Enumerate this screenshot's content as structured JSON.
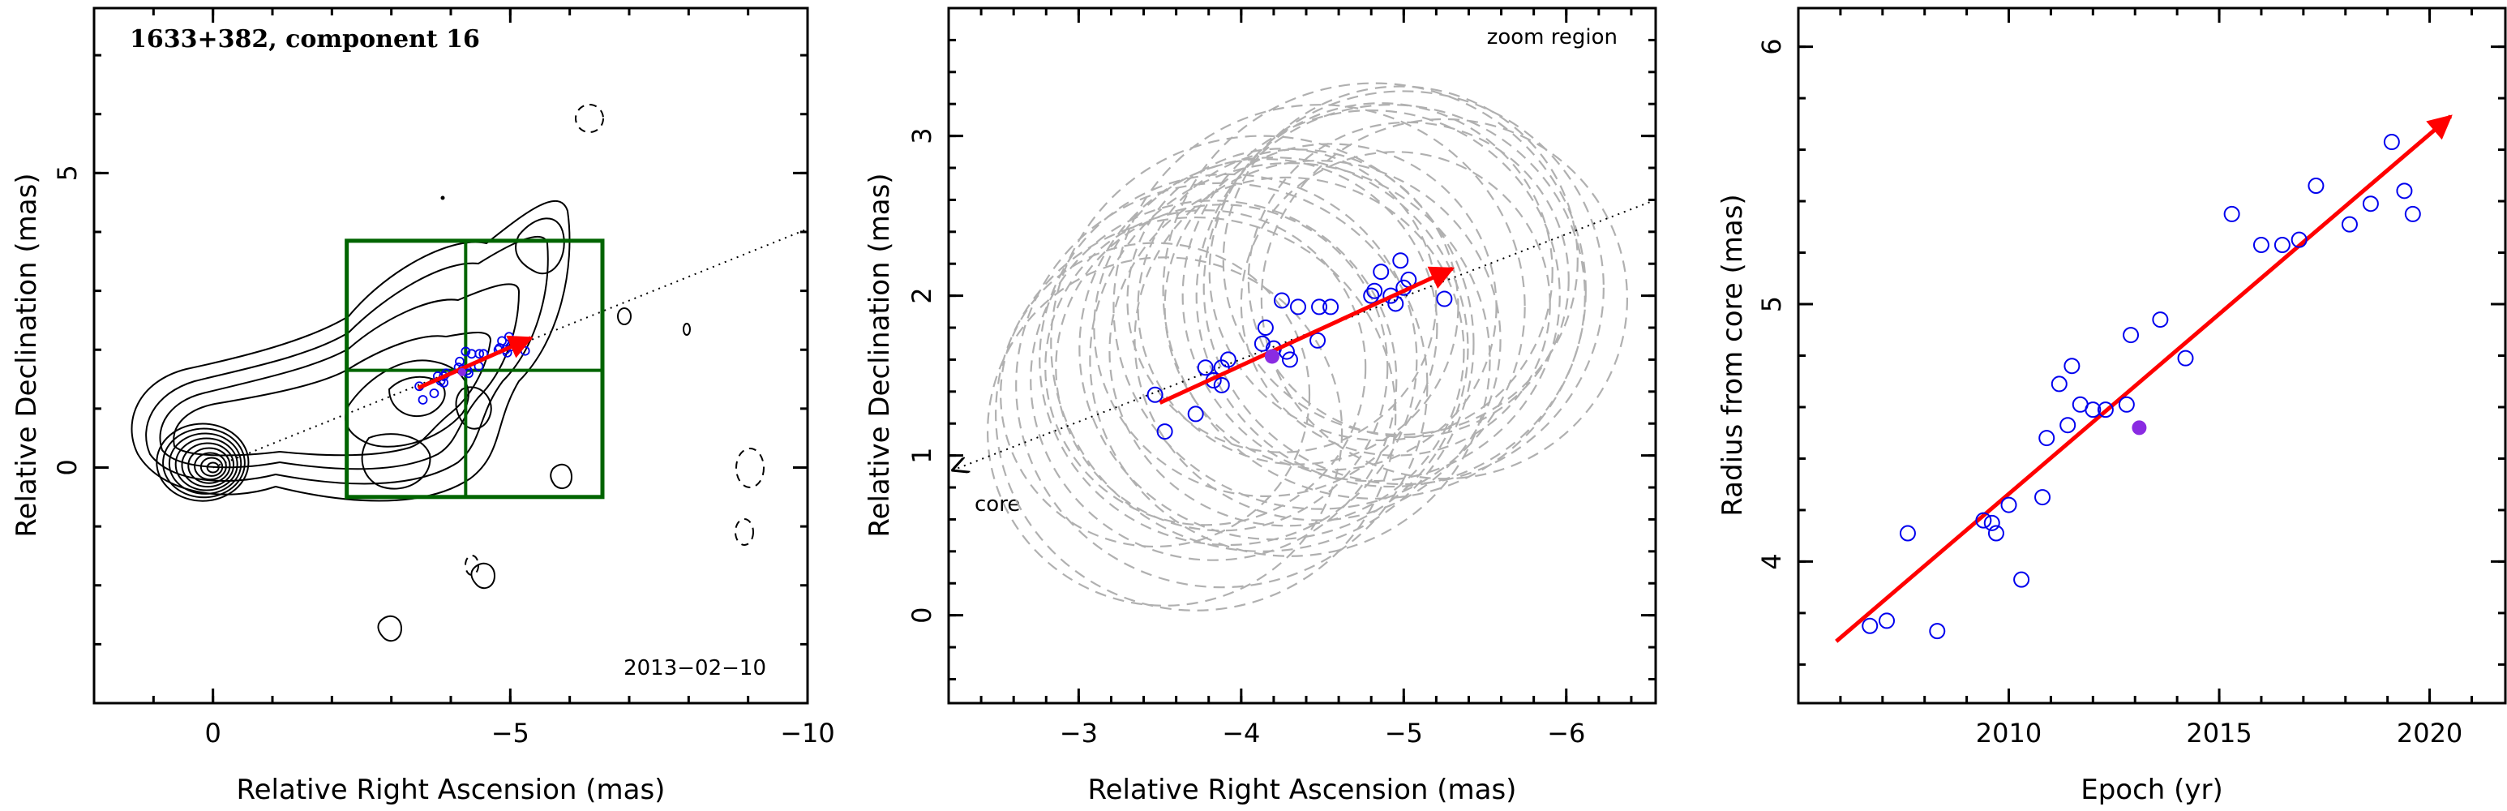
{
  "chart_data": [
    {
      "type": "contour",
      "title": "1633+382, component 16",
      "xlabel": "Relative Right Ascension (mas)",
      "ylabel": "Relative Declination (mas)",
      "xlim": [
        2.0,
        -10.0
      ],
      "ylim": [
        -4.0,
        7.8
      ],
      "xticks_major": [
        0,
        -5,
        -10
      ],
      "yticks_major": [
        0,
        5
      ],
      "epoch_label": "2013−02−10",
      "jet_axis": [
        [
          0,
          0
        ],
        [
          -10,
          4.05
        ]
      ],
      "zoom_box": {
        "x": [
          -2.25,
          -6.55
        ],
        "y": [
          -0.5,
          3.85
        ],
        "divider_x": -4.25,
        "divider_y": 1.65
      },
      "arrow": {
        "from": [
          -3.45,
          1.35
        ],
        "to": [
          -5.35,
          2.2
        ],
        "color": "#ff0000"
      },
      "core_center": [
        0,
        0
      ]
    },
    {
      "type": "scatter",
      "xlabel": "Relative Right Ascension (mas)",
      "ylabel": "Relative Declination (mas)",
      "xlim": [
        -2.2,
        -6.55
      ],
      "ylim": [
        -0.55,
        3.8
      ],
      "xticks_major": [
        -3,
        -4,
        -5,
        -6
      ],
      "yticks_major": [
        0,
        1,
        2,
        3
      ],
      "annotation_zoom": "zoom region",
      "annotation_core": "core",
      "core_arrow_tip": [
        -2.2,
        0.9
      ],
      "jet_axis": [
        [
          -2.2,
          0.9
        ],
        [
          -6.55,
          2.6
        ]
      ],
      "arrow": {
        "from": [
          -3.5,
          1.33
        ],
        "to": [
          -5.3,
          2.17
        ],
        "color": "#ff0000"
      },
      "points": [
        [
          -3.47,
          1.38
        ],
        [
          -3.53,
          1.15
        ],
        [
          -3.72,
          1.26
        ],
        [
          -3.78,
          1.55
        ],
        [
          -3.83,
          1.47
        ],
        [
          -3.88,
          1.44
        ],
        [
          -3.88,
          1.55
        ],
        [
          -3.92,
          1.6
        ],
        [
          -4.13,
          1.7
        ],
        [
          -4.15,
          1.8
        ],
        [
          -4.2,
          1.67
        ],
        [
          -4.25,
          1.97
        ],
        [
          -4.28,
          1.65
        ],
        [
          -4.3,
          1.6
        ],
        [
          -4.35,
          1.93
        ],
        [
          -4.47,
          1.72
        ],
        [
          -4.48,
          1.93
        ],
        [
          -4.55,
          1.93
        ],
        [
          -4.8,
          2.0
        ],
        [
          -4.82,
          2.03
        ],
        [
          -4.86,
          2.15
        ],
        [
          -4.92,
          2.0
        ],
        [
          -4.95,
          1.95
        ],
        [
          -4.98,
          2.22
        ],
        [
          -5.0,
          2.05
        ],
        [
          -5.03,
          2.1
        ],
        [
          -5.25,
          1.98
        ]
      ],
      "highlight_point": [
        -4.19,
        1.62
      ],
      "point_color": "#0000ee",
      "highlight_color": "#8a2be2",
      "circle_color": "#b0b0b0"
    },
    {
      "type": "scatter",
      "xlabel": "Epoch (yr)",
      "ylabel": "Radius from core (mas)",
      "xlim": [
        2005.0,
        2021.8
      ],
      "ylim": [
        3.45,
        6.15
      ],
      "xticks_major": [
        2010,
        2015,
        2020
      ],
      "yticks_major": [
        4,
        5,
        6
      ],
      "fit_arrow": {
        "from": [
          2005.9,
          3.69
        ],
        "to": [
          2020.5,
          5.73
        ],
        "color": "#ff0000"
      },
      "points": [
        [
          2006.7,
          3.75
        ],
        [
          2007.1,
          3.77
        ],
        [
          2007.6,
          4.11
        ],
        [
          2008.3,
          3.73
        ],
        [
          2009.4,
          4.16
        ],
        [
          2009.6,
          4.15
        ],
        [
          2009.7,
          4.11
        ],
        [
          2010.0,
          4.22
        ],
        [
          2010.3,
          3.93
        ],
        [
          2010.8,
          4.25
        ],
        [
          2010.9,
          4.48
        ],
        [
          2011.2,
          4.69
        ],
        [
          2011.4,
          4.53
        ],
        [
          2011.5,
          4.76
        ],
        [
          2011.7,
          4.61
        ],
        [
          2012.0,
          4.59
        ],
        [
          2012.3,
          4.59
        ],
        [
          2012.8,
          4.61
        ],
        [
          2012.9,
          4.88
        ],
        [
          2013.6,
          4.94
        ],
        [
          2014.2,
          4.79
        ],
        [
          2015.3,
          5.35
        ],
        [
          2016.0,
          5.23
        ],
        [
          2016.5,
          5.23
        ],
        [
          2016.9,
          5.25
        ],
        [
          2017.3,
          5.46
        ],
        [
          2018.1,
          5.31
        ],
        [
          2018.6,
          5.39
        ],
        [
          2019.1,
          5.63
        ],
        [
          2019.4,
          5.44
        ],
        [
          2019.6,
          5.35
        ]
      ],
      "highlight_point": [
        2013.1,
        4.52
      ],
      "point_color": "#0000ee",
      "highlight_color": "#8a2be2"
    }
  ]
}
